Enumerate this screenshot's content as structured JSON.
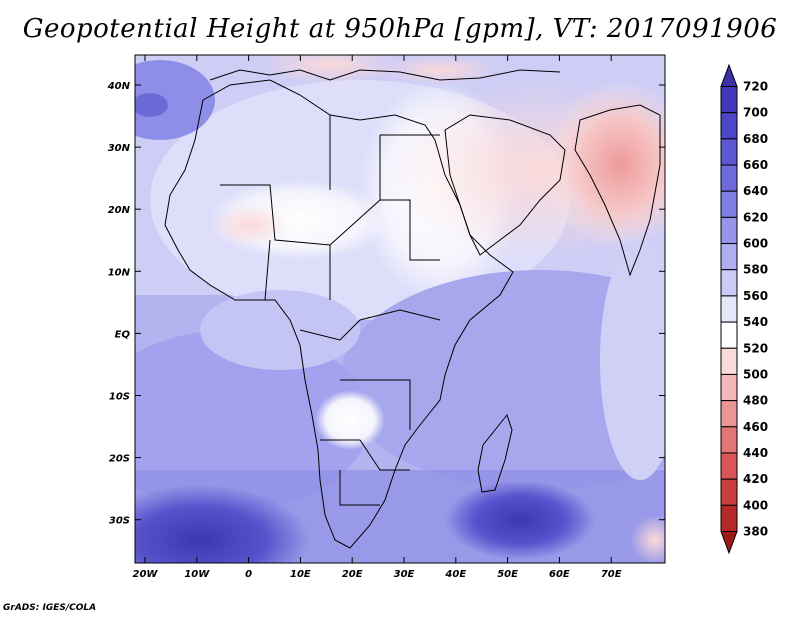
{
  "title": "Geopotential Height at 950hPa [gpm], VT: 2017091906",
  "credit": "GrADS: IGES/COLA",
  "map": {
    "lat_ticks": [
      "40N",
      "30N",
      "20N",
      "10N",
      "EQ",
      "10S",
      "20S",
      "30S"
    ],
    "lon_ticks": [
      "20W",
      "10W",
      "0",
      "10E",
      "20E",
      "30E",
      "40E",
      "50E",
      "60E",
      "70E"
    ]
  },
  "colorbar": {
    "levels": [
      "720",
      "700",
      "680",
      "660",
      "640",
      "620",
      "600",
      "580",
      "560",
      "540",
      "520",
      "500",
      "480",
      "460",
      "440",
      "420",
      "400",
      "380"
    ],
    "colors": [
      "#3a31a8",
      "#3f39b9",
      "#4c46c8",
      "#5b58d2",
      "#6d6bdb",
      "#807fe3",
      "#9695ea",
      "#aeaef1",
      "#cbcbf7",
      "#e6e6fb",
      "#ffffff",
      "#fadada",
      "#f2b8b8",
      "#ea9696",
      "#e27575",
      "#d85656",
      "#ca3e3e",
      "#b52828",
      "#9e1818"
    ]
  }
}
